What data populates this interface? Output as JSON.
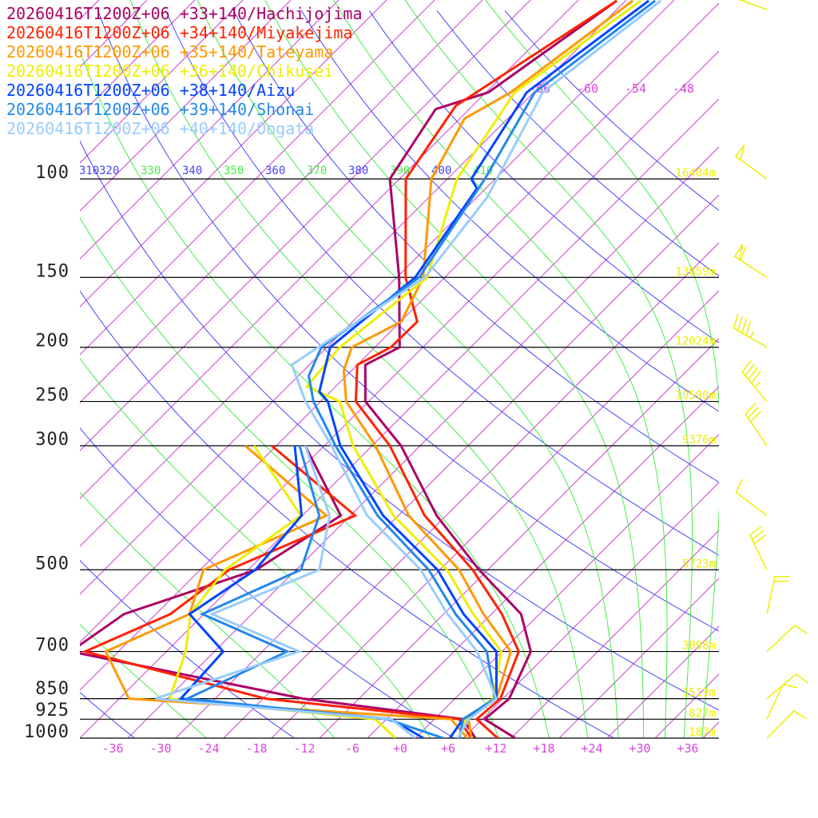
{
  "chart_data": {
    "type": "line",
    "subtype": "skew-T log-p sounding",
    "legend_placement": "top-left",
    "series": [
      {
        "name": "20260416T1200Z+06 +33+140/Hachijojima",
        "color": "#aa0066",
        "temperature": [
          [
            1000,
            14.5
          ],
          [
            925,
            8.3
          ],
          [
            850,
            8.8
          ],
          [
            700,
            5.6
          ],
          [
            600,
            -0.3
          ],
          [
            500,
            -11.1
          ],
          [
            400,
            -23.2
          ],
          [
            300,
            -36.4
          ],
          [
            250,
            -46.4
          ],
          [
            215,
            -51
          ],
          [
            200,
            -48.9
          ],
          [
            150,
            -57.7
          ],
          [
            100,
            -71.2
          ],
          [
            75,
            -74.2
          ],
          [
            70,
            -69.7
          ],
          [
            48,
            -65.1
          ]
        ],
        "dewpoint": [
          [
            1000,
            9.5
          ],
          [
            925,
            5.6
          ],
          [
            850,
            -17
          ],
          [
            700,
            -52
          ],
          [
            600,
            -50
          ],
          [
            500,
            -39
          ],
          [
            400,
            -35.2
          ],
          [
            300,
            -48.4
          ]
        ]
      },
      {
        "name": "20260416T1200Z+06 +34+140/Miyakejima",
        "color": "#ff2200",
        "temperature": [
          [
            1000,
            12.3
          ],
          [
            925,
            7.3
          ],
          [
            850,
            7.7
          ],
          [
            700,
            4.1
          ],
          [
            600,
            -2.7
          ],
          [
            500,
            -11.9
          ],
          [
            400,
            -24.7
          ],
          [
            300,
            -37.8
          ],
          [
            250,
            -47.6
          ],
          [
            215,
            -52
          ],
          [
            200,
            -50
          ],
          [
            180,
            -49.9
          ],
          [
            150,
            -56.9
          ],
          [
            100,
            -69.2
          ],
          [
            74,
            -72.1
          ],
          [
            48,
            -65.1
          ]
        ],
        "dewpoint": [
          [
            1000,
            9
          ],
          [
            925,
            5.1
          ],
          [
            850,
            -21.7
          ],
          [
            700,
            -50.2
          ],
          [
            600,
            -44.2
          ],
          [
            500,
            -42.4
          ],
          [
            400,
            -33.4
          ],
          [
            300,
            -52.6
          ]
        ]
      },
      {
        "name": "20260416T1200Z+06 +35+140/Tateyama",
        "color": "#ff9900",
        "temperature": [
          [
            1000,
            9
          ],
          [
            925,
            6.3
          ],
          [
            850,
            7.2
          ],
          [
            700,
            3.1
          ],
          [
            600,
            -5
          ],
          [
            500,
            -13.6
          ],
          [
            400,
            -26.7
          ],
          [
            300,
            -39.6
          ],
          [
            250,
            -48.8
          ],
          [
            220,
            -53
          ],
          [
            200,
            -54.9
          ],
          [
            180,
            -51.9
          ],
          [
            150,
            -54.7
          ],
          [
            100,
            -66
          ],
          [
            78,
            -69.4
          ],
          [
            70,
            -66.9
          ],
          [
            48,
            -63.1
          ]
        ],
        "dewpoint": [
          [
            1000,
            8.5
          ],
          [
            925,
            4.1
          ],
          [
            850,
            -38.8
          ],
          [
            700,
            -47.6
          ],
          [
            600,
            -41.8
          ],
          [
            500,
            -45.6
          ],
          [
            400,
            -37
          ],
          [
            300,
            -55.9
          ]
        ]
      },
      {
        "name": "20260416T1200Z+06 +36+140/Chikusei",
        "color": "#eeee00",
        "temperature": [
          [
            1000,
            7.5
          ],
          [
            925,
            5.9
          ],
          [
            850,
            6.8
          ],
          [
            700,
            1.9
          ],
          [
            600,
            -6.3
          ],
          [
            500,
            -15.1
          ],
          [
            400,
            -28.6
          ],
          [
            300,
            -42.4
          ],
          [
            250,
            -49.6
          ],
          [
            235,
            -55.6
          ],
          [
            200,
            -56.4
          ],
          [
            150,
            -54.2
          ],
          [
            100,
            -62.8
          ],
          [
            70,
            -66.4
          ],
          [
            48,
            -62.1
          ]
        ],
        "dewpoint": [
          [
            1000,
            -0.5
          ],
          [
            925,
            -5.4
          ],
          [
            850,
            -33.7
          ],
          [
            700,
            -37.6
          ],
          [
            600,
            -41.7
          ],
          [
            500,
            -42.9
          ],
          [
            400,
            -40.2
          ],
          [
            300,
            -54.8
          ]
        ]
      },
      {
        "name": "20260416T1200Z+06 +38+140/Aizu",
        "color": "#0044ff",
        "temperature": [
          [
            1000,
            6.3
          ],
          [
            925,
            5.6
          ],
          [
            850,
            7.2
          ],
          [
            700,
            1.3
          ],
          [
            600,
            -7.5
          ],
          [
            500,
            -16.3
          ],
          [
            400,
            -29.9
          ],
          [
            300,
            -44
          ],
          [
            250,
            -51.1
          ],
          [
            240,
            -53.4
          ],
          [
            200,
            -57.6
          ],
          [
            150,
            -55.7
          ],
          [
            104,
            -59.1
          ],
          [
            100,
            -61
          ],
          [
            70,
            -64.9
          ],
          [
            48,
            -61.1
          ]
        ],
        "dewpoint": [
          [
            1000,
            3
          ],
          [
            925,
            -3.4
          ],
          [
            850,
            -32.3
          ],
          [
            700,
            -32.9
          ],
          [
            600,
            -41.8
          ],
          [
            500,
            -39.1
          ],
          [
            400,
            -40.1
          ],
          [
            300,
            -49.7
          ]
        ]
      },
      {
        "name": "20260416T1200Z+06 +39+140/Shonai",
        "color": "#2288ee",
        "temperature": [
          [
            1000,
            7.5
          ],
          [
            925,
            5.6
          ],
          [
            850,
            7
          ],
          [
            700,
            0.1
          ],
          [
            600,
            -8.5
          ],
          [
            500,
            -17.4
          ],
          [
            400,
            -30.6
          ],
          [
            300,
            -44.6
          ],
          [
            250,
            -52.9
          ],
          [
            225,
            -56.7
          ],
          [
            200,
            -58.7
          ],
          [
            150,
            -55.2
          ],
          [
            100,
            -59.3
          ],
          [
            70,
            -63.9
          ],
          [
            48,
            -60.3
          ]
        ],
        "dewpoint": [
          [
            1000,
            5.5
          ],
          [
            925,
            -3.9
          ],
          [
            850,
            -31.5
          ],
          [
            700,
            -24.9
          ],
          [
            600,
            -40.2
          ],
          [
            500,
            -33.4
          ],
          [
            400,
            -37.9
          ],
          [
            300,
            -49.1
          ]
        ]
      },
      {
        "name": "20260416T1200Z+06 +40+140/Oogata",
        "color": "#99ccff",
        "temperature": [
          [
            1000,
            7.3
          ],
          [
            925,
            6.3
          ],
          [
            850,
            7.2
          ],
          [
            700,
            -1.1
          ],
          [
            600,
            -9.5
          ],
          [
            500,
            -18.4
          ],
          [
            400,
            -31.9
          ],
          [
            300,
            -45.1
          ],
          [
            250,
            -53.9
          ],
          [
            215,
            -60.2
          ],
          [
            200,
            -59.1
          ],
          [
            150,
            -54.5
          ],
          [
            108,
            -56.7
          ],
          [
            70,
            -62.9
          ],
          [
            48,
            -59.6
          ]
        ],
        "dewpoint": [
          [
            1000,
            2
          ],
          [
            925,
            -3.4
          ],
          [
            850,
            -35.5
          ],
          [
            700,
            -23.4
          ],
          [
            600,
            -39
          ],
          [
            500,
            -31.1
          ],
          [
            400,
            -36.6
          ],
          [
            300,
            -48.4
          ]
        ]
      }
    ],
    "pressure_levels": [
      {
        "p": 100,
        "label": "100",
        "height": "16404m"
      },
      {
        "p": 150,
        "label": "150",
        "height": "13859m"
      },
      {
        "p": 200,
        "label": "200",
        "height": "12024m"
      },
      {
        "p": 250,
        "label": "250",
        "height": "10590m"
      },
      {
        "p": 300,
        "label": "300",
        "height": "9376m"
      },
      {
        "p": 500,
        "label": "500",
        "height": "5723m"
      },
      {
        "p": 700,
        "label": "700",
        "height": "3098m"
      },
      {
        "p": 850,
        "label": "850",
        "height": "1519m"
      },
      {
        "p": 925,
        "label": "925",
        "height": "827m"
      },
      {
        "p": 1000,
        "label": "1000",
        "height": "187m"
      }
    ],
    "x_ticks": [
      "-36",
      "-30",
      "-24",
      "-18",
      "-12",
      "-6",
      "+0",
      "+6",
      "+12",
      "+18",
      "+24",
      "+30",
      "+36"
    ],
    "x_tick_values": [
      -36,
      -30,
      -24,
      -18,
      -12,
      -6,
      0,
      6,
      12,
      18,
      24,
      30,
      36
    ],
    "top_isotherm_labels": [
      {
        "value": -66,
        "label": "-66"
      },
      {
        "value": -60,
        "label": "-60"
      },
      {
        "value": -54,
        "label": "-54"
      },
      {
        "value": -48,
        "label": "-48"
      }
    ],
    "theta_labels": [
      {
        "value": 310,
        "label": "310",
        "kind": "dry"
      },
      {
        "value": 320,
        "label": "320",
        "kind": "dry"
      },
      {
        "value": 330,
        "label": "330",
        "kind": "moist"
      },
      {
        "value": 340,
        "label": "340",
        "kind": "dry"
      },
      {
        "value": 350,
        "label": "350",
        "kind": "moist"
      },
      {
        "value": 360,
        "label": "360",
        "kind": "dry"
      },
      {
        "value": 370,
        "label": "370",
        "kind": "moist"
      },
      {
        "value": 380,
        "label": "380",
        "kind": "dry"
      },
      {
        "value": 390,
        "label": "390",
        "kind": "moist"
      },
      {
        "value": 400,
        "label": "400",
        "kind": "dry"
      },
      {
        "value": 410,
        "label": "410",
        "kind": "moist"
      }
    ],
    "temperature_range_at_1000hPa": [
      -40,
      40
    ],
    "pressure_range": [
      1000,
      48
    ],
    "wind": [
      {
        "p": 48,
        "dir_deg": 290,
        "speed_kt": 40
      },
      {
        "p": 100,
        "dir_deg": 306,
        "speed_kt": 50
      },
      {
        "p": 150,
        "dir_deg": 303,
        "speed_kt": 60
      },
      {
        "p": 200,
        "dir_deg": 300,
        "speed_kt": 45
      },
      {
        "p": 250,
        "dir_deg": 320,
        "speed_kt": 45
      },
      {
        "p": 300,
        "dir_deg": 326,
        "speed_kt": 30
      },
      {
        "p": 400,
        "dir_deg": 307,
        "speed_kt": 10
      },
      {
        "p": 500,
        "dir_deg": 334,
        "speed_kt": 30
      },
      {
        "p": 600,
        "dir_deg": 12,
        "speed_kt": 20
      },
      {
        "p": 700,
        "dir_deg": 47,
        "speed_kt": 10
      },
      {
        "p": 850,
        "dir_deg": 50,
        "speed_kt": 10
      },
      {
        "p": 925,
        "dir_deg": 25,
        "speed_kt": 10
      },
      {
        "p": 1000,
        "dir_deg": 45,
        "speed_kt": 10
      }
    ],
    "colors": {
      "isotherm": "#cc44cc",
      "dry_adiabat": "#4444ff",
      "moist_adiabat": "#44ee44",
      "isobar": "#000000",
      "height_label": "#eeee00",
      "wind_barb": "#eeee00"
    }
  }
}
